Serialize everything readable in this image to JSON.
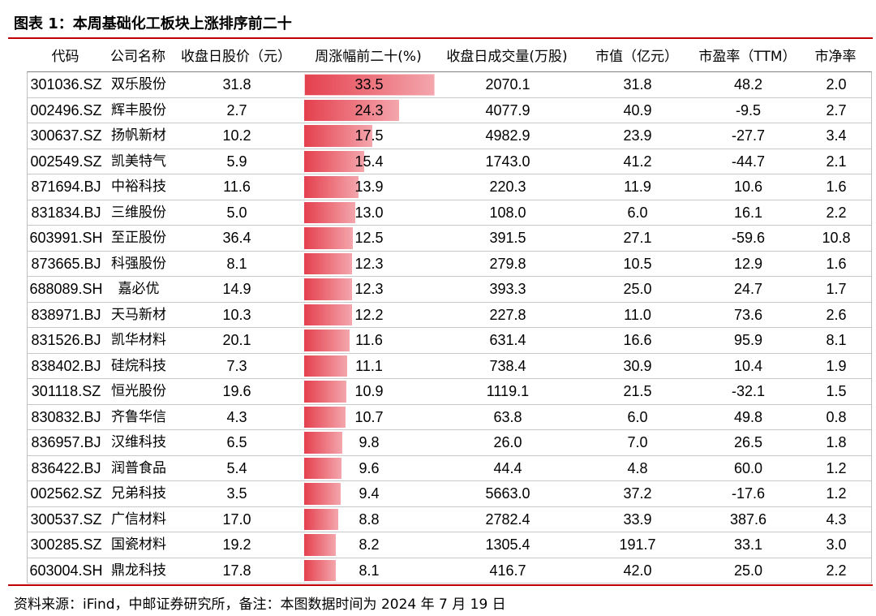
{
  "title": "图表 1：本周基础化工板块上涨排序前二十",
  "footer": "资料来源：iFind，中邮证券研究所，备注：本图数据时间为 2024 年 7 月 19 日",
  "colors": {
    "accent": "#c00000",
    "bar": "#e4404d",
    "row_border": "#c8c8c8"
  },
  "chart_data": {
    "type": "table",
    "columns": [
      "代码",
      "公司名称",
      "收盘日股价（元）",
      "周涨幅前二十(%)",
      "收盘日成交量(万股)",
      "市值（亿元）",
      "市盈率（TTM）",
      "市净率"
    ],
    "bar_column": 3,
    "rows": [
      [
        "301036.SZ",
        "双乐股份",
        "31.8",
        "33.5",
        "2070.1",
        "31.8",
        "48.2",
        "2.0"
      ],
      [
        "002496.SZ",
        "辉丰股份",
        "2.7",
        "24.3",
        "4077.9",
        "40.9",
        "-9.5",
        "2.7"
      ],
      [
        "300637.SZ",
        "扬帆新材",
        "10.2",
        "17.5",
        "4982.9",
        "23.9",
        "-27.7",
        "3.4"
      ],
      [
        "002549.SZ",
        "凯美特气",
        "5.9",
        "15.4",
        "1743.0",
        "41.2",
        "-44.7",
        "2.1"
      ],
      [
        "871694.BJ",
        "中裕科技",
        "11.6",
        "13.9",
        "220.3",
        "11.9",
        "10.6",
        "1.6"
      ],
      [
        "831834.BJ",
        "三维股份",
        "5.0",
        "13.0",
        "108.0",
        "6.0",
        "16.1",
        "2.2"
      ],
      [
        "603991.SH",
        "至正股份",
        "36.4",
        "12.5",
        "391.5",
        "27.1",
        "-59.6",
        "10.8"
      ],
      [
        "873665.BJ",
        "科强股份",
        "8.1",
        "12.3",
        "279.8",
        "10.5",
        "12.9",
        "1.6"
      ],
      [
        "688089.SH",
        "嘉必优",
        "14.9",
        "12.3",
        "393.3",
        "25.0",
        "24.7",
        "1.7"
      ],
      [
        "838971.BJ",
        "天马新材",
        "10.3",
        "12.2",
        "227.8",
        "11.0",
        "73.6",
        "2.6"
      ],
      [
        "831526.BJ",
        "凯华材料",
        "20.1",
        "11.6",
        "631.4",
        "16.6",
        "95.9",
        "8.1"
      ],
      [
        "838402.BJ",
        "硅烷科技",
        "7.3",
        "11.1",
        "738.4",
        "30.9",
        "10.4",
        "1.9"
      ],
      [
        "301118.SZ",
        "恒光股份",
        "19.6",
        "10.9",
        "1119.1",
        "21.5",
        "-32.1",
        "1.5"
      ],
      [
        "830832.BJ",
        "齐鲁华信",
        "4.3",
        "10.7",
        "63.8",
        "6.0",
        "49.8",
        "0.8"
      ],
      [
        "836957.BJ",
        "汉维科技",
        "6.5",
        "9.8",
        "26.0",
        "7.0",
        "26.5",
        "1.8"
      ],
      [
        "836422.BJ",
        "润普食品",
        "5.4",
        "9.6",
        "44.4",
        "4.8",
        "60.0",
        "1.2"
      ],
      [
        "002562.SZ",
        "兄弟科技",
        "3.5",
        "9.4",
        "5663.0",
        "37.2",
        "-17.6",
        "1.2"
      ],
      [
        "300537.SZ",
        "广信材料",
        "17.0",
        "8.8",
        "2782.4",
        "33.9",
        "387.6",
        "4.3"
      ],
      [
        "300285.SZ",
        "国瓷材料",
        "19.2",
        "8.2",
        "1305.4",
        "191.7",
        "33.1",
        "3.0"
      ],
      [
        "603004.SH",
        "鼎龙科技",
        "17.8",
        "8.1",
        "416.7",
        "42.0",
        "25.0",
        "2.2"
      ]
    ]
  }
}
